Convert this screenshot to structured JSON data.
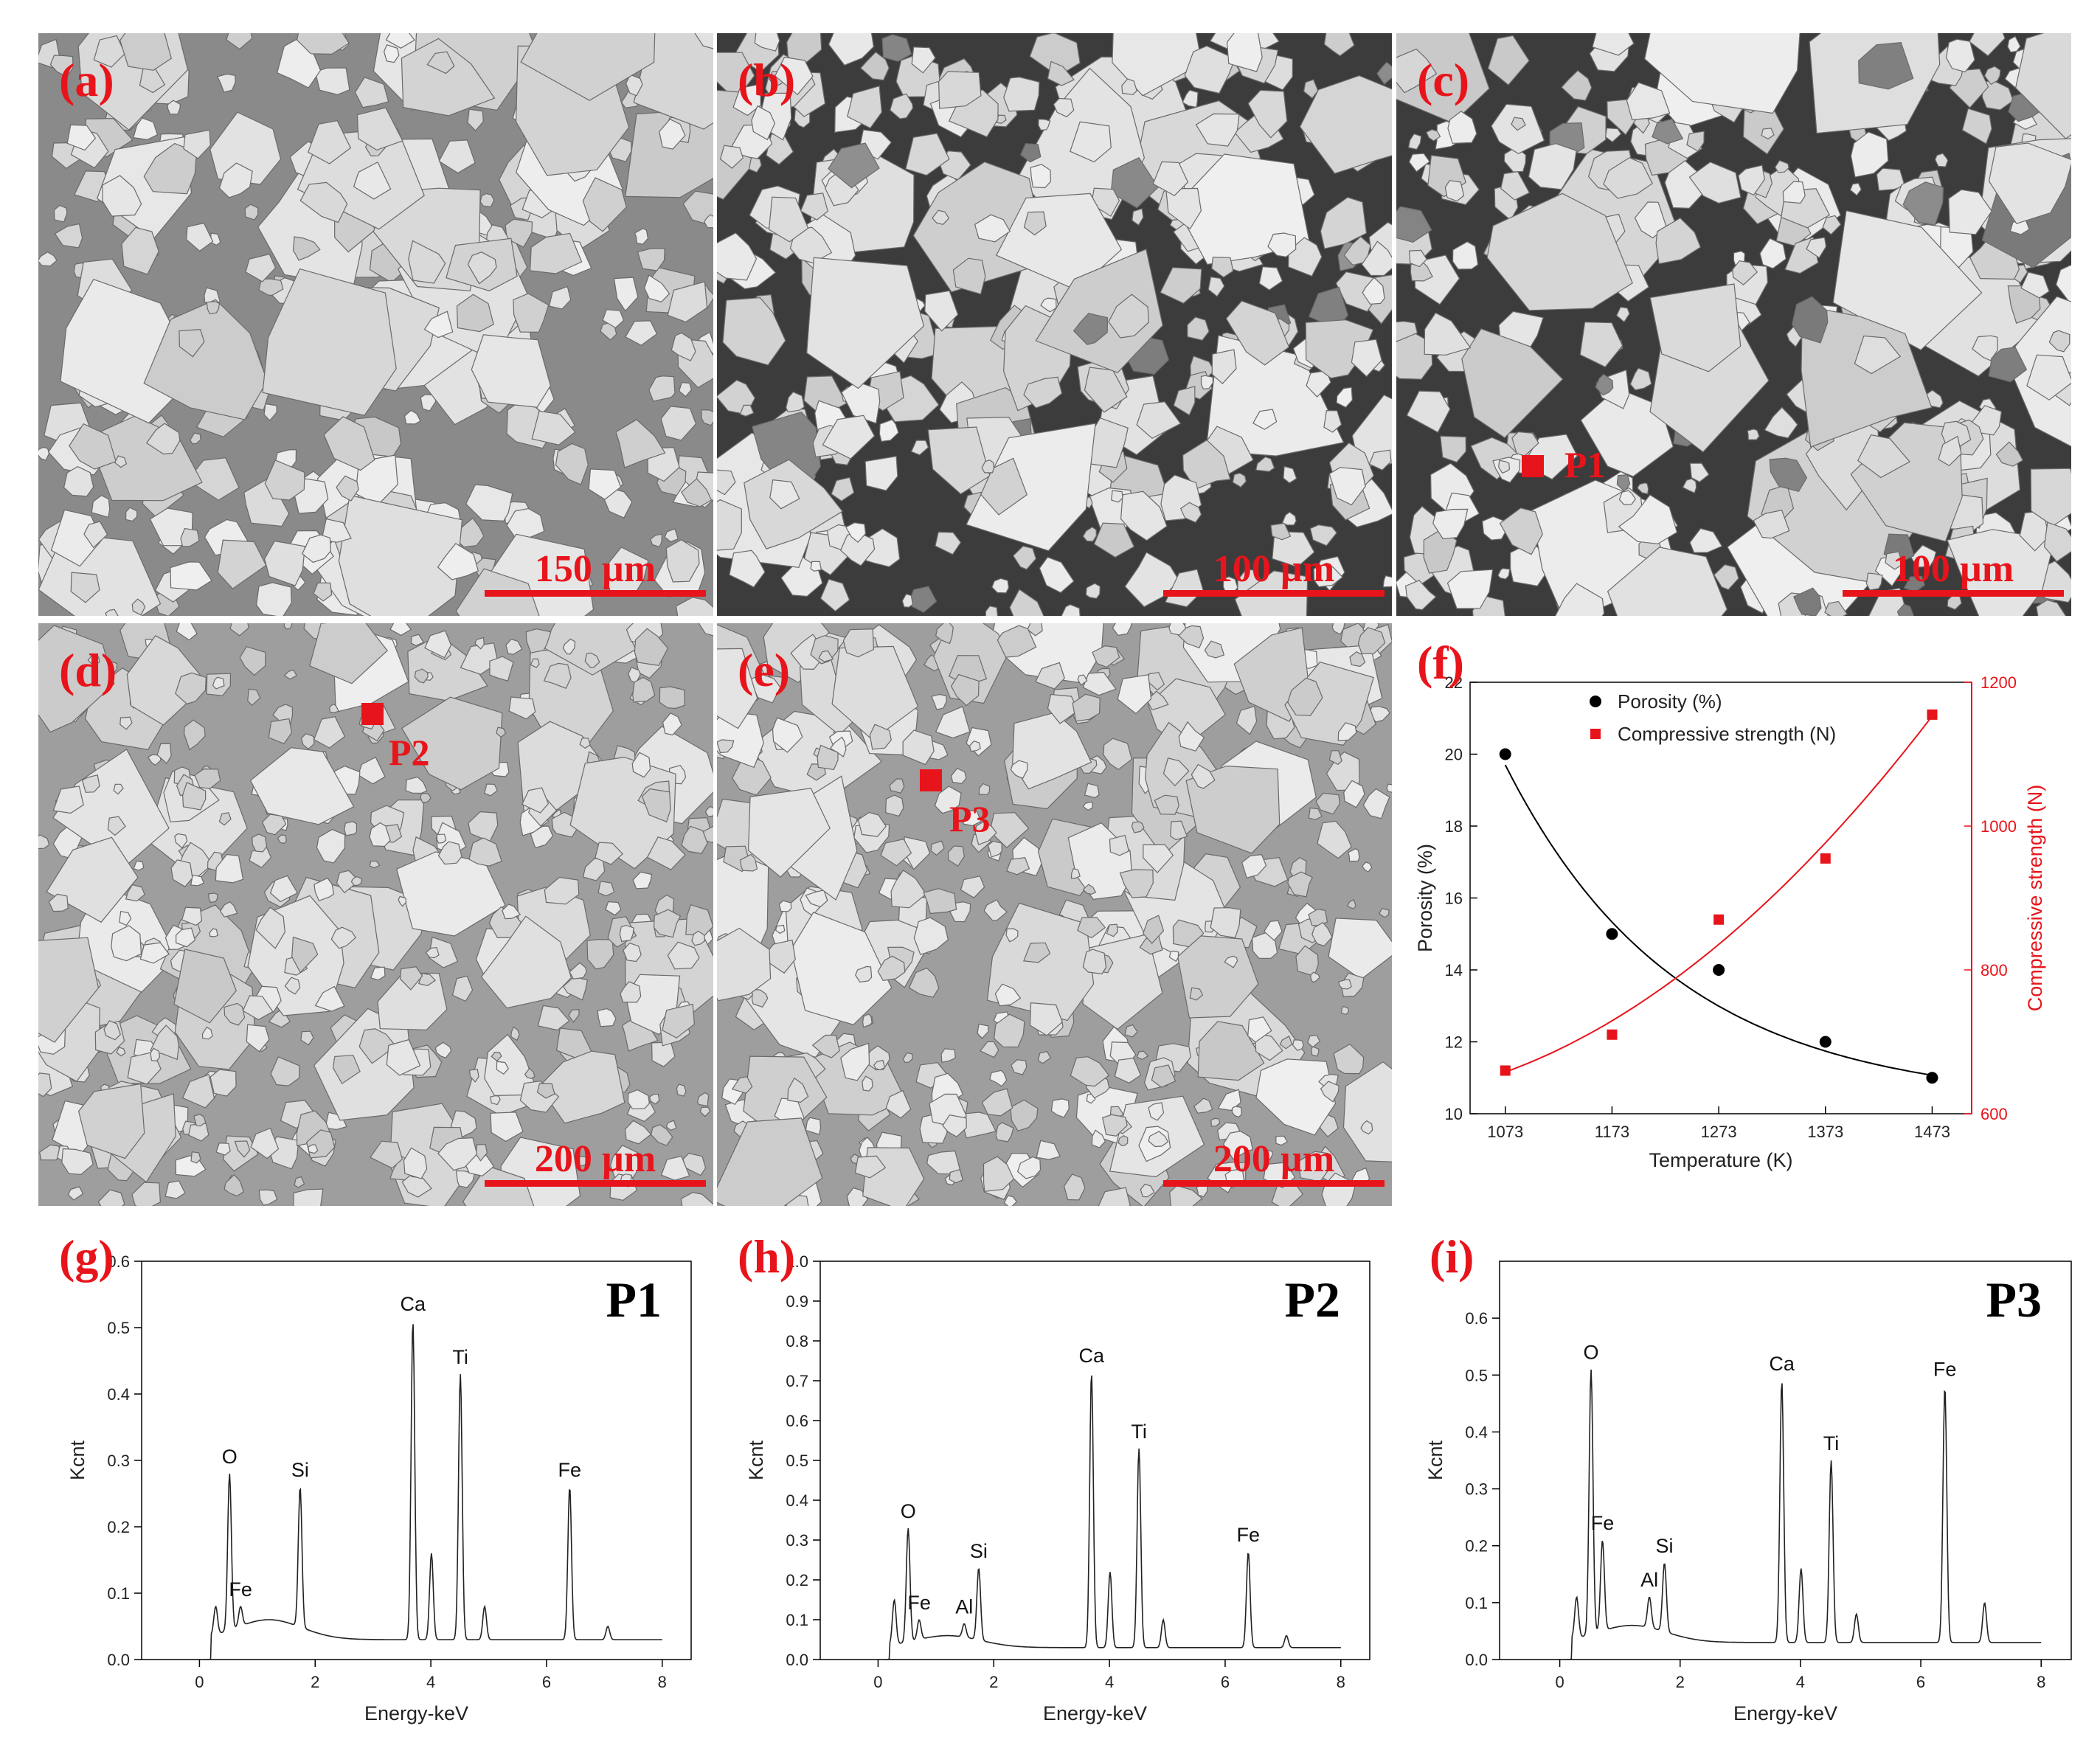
{
  "sem_panels": [
    {
      "label": "(a)",
      "scale": "150 µm"
    },
    {
      "label": "(b)",
      "scale": "100 µm"
    },
    {
      "label": "(c)",
      "scale": "100 µm",
      "marker": "P1"
    },
    {
      "label": "(d)",
      "scale": "200 µm",
      "marker": "P2"
    },
    {
      "label": "(e)",
      "scale": "200 µm",
      "marker": "P3"
    }
  ],
  "chart_f": {
    "label": "(f)",
    "xlabel": "Temperature (K)",
    "ylabel_left": "Porosity (%)",
    "ylabel_right": "Compressive strength (N)",
    "legend": [
      "Porosity (%)",
      "Compressive strength (N)"
    ],
    "xticks": [
      "1073",
      "1173",
      "1273",
      "1373",
      "1473"
    ],
    "yticks_left": [
      "10",
      "12",
      "14",
      "16",
      "18",
      "20",
      "22"
    ],
    "yticks_right": [
      "600",
      "800",
      "1000",
      "1200"
    ]
  },
  "eds": [
    {
      "label": "(g)",
      "title": "P1",
      "yticks": [
        "0.0",
        "0.1",
        "0.2",
        "0.3",
        "0.4",
        "0.5",
        "0.6"
      ],
      "xticks": [
        "0",
        "2",
        "4",
        "6",
        "8"
      ],
      "xlabel": "Energy-keV",
      "ylabel": "Kcnt"
    },
    {
      "label": "(h)",
      "title": "P2",
      "yticks": [
        "0.0",
        "0.1",
        "0.2",
        "0.3",
        "0.4",
        "0.5",
        "0.6",
        "0.7",
        "0.8",
        "0.9",
        "1.0"
      ],
      "xticks": [
        "0",
        "2",
        "4",
        "6",
        "8"
      ],
      "xlabel": "Energy-keV",
      "ylabel": "Kcnt"
    },
    {
      "label": "(i)",
      "title": "P3",
      "yticks": [
        "0.0",
        "0.1",
        "0.2",
        "0.3",
        "0.4",
        "0.5",
        "0.6"
      ],
      "xticks": [
        "0",
        "2",
        "4",
        "6",
        "8"
      ],
      "xlabel": "Energy-keV",
      "ylabel": "Kcnt"
    }
  ],
  "chart_data": [
    {
      "type": "scatter",
      "x": [
        1073,
        1173,
        1273,
        1373,
        1473
      ],
      "xlim": [
        1040,
        1510
      ],
      "series": [
        {
          "name": "Porosity (%)",
          "axis": "left",
          "values": [
            20,
            15,
            14,
            12,
            11
          ],
          "color": "#000000",
          "marker": "circle",
          "fit_curve": true
        },
        {
          "name": "Compressive strength (N)",
          "axis": "right",
          "values": [
            660,
            710,
            870,
            955,
            1155
          ],
          "color": "#e8141b",
          "marker": "square",
          "fit_curve": true
        }
      ],
      "xlabel": "Temperature (K)",
      "ylabel": "Porosity (%)",
      "ylabel_right": "Compressive strength (N)",
      "ylim": [
        10,
        22
      ],
      "ylim_right": [
        600,
        1200
      ],
      "legend": "top-left"
    },
    {
      "type": "line",
      "title": "P1",
      "xlabel": "Energy-keV",
      "ylabel": "Kcnt",
      "xlim": [
        -1,
        8.5
      ],
      "ylim": [
        0,
        0.6
      ],
      "peaks": [
        {
          "element": "",
          "x": 0.28,
          "y": 0.08
        },
        {
          "element": "O",
          "x": 0.52,
          "y": 0.28
        },
        {
          "element": "Fe",
          "x": 0.71,
          "y": 0.08
        },
        {
          "element": "Si",
          "x": 1.74,
          "y": 0.26
        },
        {
          "element": "Ca",
          "x": 3.69,
          "y": 0.51
        },
        {
          "element": "",
          "x": 4.01,
          "y": 0.16
        },
        {
          "element": "Ti",
          "x": 4.51,
          "y": 0.43
        },
        {
          "element": "",
          "x": 4.93,
          "y": 0.08
        },
        {
          "element": "Fe",
          "x": 6.4,
          "y": 0.26
        },
        {
          "element": "",
          "x": 7.06,
          "y": 0.05
        }
      ]
    },
    {
      "type": "line",
      "title": "P2",
      "xlabel": "Energy-keV",
      "ylabel": "Kcnt",
      "xlim": [
        -1,
        8.5
      ],
      "ylim": [
        0,
        1.0
      ],
      "peaks": [
        {
          "element": "",
          "x": 0.28,
          "y": 0.15
        },
        {
          "element": "O",
          "x": 0.52,
          "y": 0.33
        },
        {
          "element": "Fe",
          "x": 0.71,
          "y": 0.1
        },
        {
          "element": "Al",
          "x": 1.49,
          "y": 0.09
        },
        {
          "element": "Si",
          "x": 1.74,
          "y": 0.23
        },
        {
          "element": "Ca",
          "x": 3.69,
          "y": 0.72
        },
        {
          "element": "",
          "x": 4.01,
          "y": 0.22
        },
        {
          "element": "Ti",
          "x": 4.51,
          "y": 0.53
        },
        {
          "element": "",
          "x": 4.93,
          "y": 0.1
        },
        {
          "element": "Fe",
          "x": 6.4,
          "y": 0.27
        },
        {
          "element": "",
          "x": 7.06,
          "y": 0.06
        }
      ]
    },
    {
      "type": "line",
      "title": "P3",
      "xlabel": "Energy-keV",
      "ylabel": "Kcnt",
      "xlim": [
        -1,
        8.5
      ],
      "ylim": [
        0,
        0.7
      ],
      "peaks": [
        {
          "element": "",
          "x": 0.28,
          "y": 0.11
        },
        {
          "element": "O",
          "x": 0.52,
          "y": 0.51
        },
        {
          "element": "Fe",
          "x": 0.71,
          "y": 0.21
        },
        {
          "element": "Al",
          "x": 1.49,
          "y": 0.11
        },
        {
          "element": "Si",
          "x": 1.74,
          "y": 0.17
        },
        {
          "element": "Ca",
          "x": 3.69,
          "y": 0.49
        },
        {
          "element": "",
          "x": 4.01,
          "y": 0.16
        },
        {
          "element": "Ti",
          "x": 4.51,
          "y": 0.35
        },
        {
          "element": "",
          "x": 4.93,
          "y": 0.08
        },
        {
          "element": "Fe",
          "x": 6.4,
          "y": 0.48
        },
        {
          "element": "",
          "x": 7.06,
          "y": 0.1
        }
      ]
    }
  ]
}
